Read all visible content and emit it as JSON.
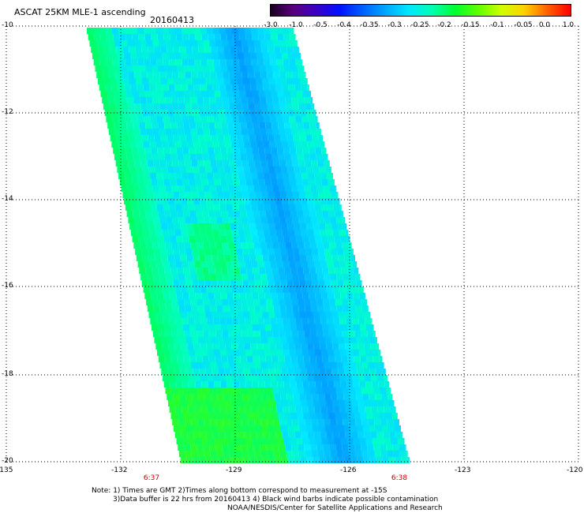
{
  "title": "ASCAT 25KM MLE-1 ascending",
  "date": "20160413",
  "colorbar": {
    "labels": [
      "-3.0",
      "-1.0",
      "-0.5",
      "-0.4",
      "-0.35",
      "-0.3",
      "-0.25",
      "-0.2",
      "-0.15",
      "-0.1",
      "-0.05",
      "0.0",
      "1.0"
    ],
    "colors": [
      "#1a0020",
      "#5a0080",
      "#3a00c8",
      "#0010ff",
      "#0060ff",
      "#00a8ff",
      "#00e8ff",
      "#00ffb0",
      "#00ff30",
      "#60ff00",
      "#d0ff00",
      "#ffd000",
      "#ff6000",
      "#ff0000"
    ]
  },
  "axes": {
    "lat_labels": [
      "-10",
      "-12",
      "-14",
      "-16",
      "-18",
      "-20"
    ],
    "lon_labels": [
      "-135",
      "-132",
      "-129",
      "-126",
      "-123",
      "-120"
    ]
  },
  "times": {
    "left": "6:37",
    "right": "6:38"
  },
  "notes": {
    "line1": "Note: 1) Times are GMT 2)Times along bottom correspond to measurement at -15S",
    "line2": "3)Data buffer is 22 hrs from 20160413 4) Black wind barbs indicate possible contamination",
    "line3": "NOAA/NESDIS/Center for Satellite Applications and Research"
  },
  "palette": {
    "swath_base": "#00ffe0",
    "swath_blue": "#00c8ff",
    "swath_deep": "#0090ff",
    "swath_green": "#00ff80",
    "grid": "#000000"
  }
}
